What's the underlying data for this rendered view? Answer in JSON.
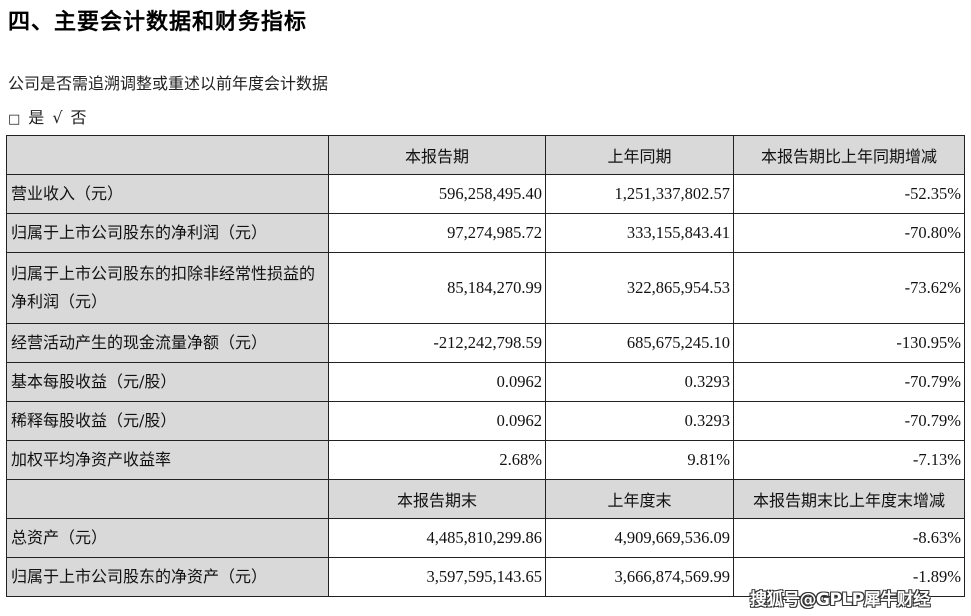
{
  "document": {
    "section_title": "四、主要会计数据和财务指标",
    "question": "公司是否需追溯调整或重述以前年度会计数据",
    "answer": {
      "yes_marker": "□",
      "yes_label": "是",
      "no_marker": "√",
      "no_label": "否"
    }
  },
  "table": {
    "header_period": [
      "",
      "本报告期",
      "上年同期",
      "本报告期比上年同期增减"
    ],
    "period_rows": [
      {
        "label": "营业收入（元）",
        "current": "596,258,495.40",
        "prior": "1,251,337,802.57",
        "change": "-52.35%"
      },
      {
        "label": "归属于上市公司股东的净利润（元）",
        "current": "97,274,985.72",
        "prior": "333,155,843.41",
        "change": "-70.80%"
      },
      {
        "label": "归属于上市公司股东的扣除非经常性损益的净利润（元）",
        "current": "85,184,270.99",
        "prior": "322,865,954.53",
        "change": "-73.62%"
      },
      {
        "label": "经营活动产生的现金流量净额（元）",
        "current": "-212,242,798.59",
        "prior": "685,675,245.10",
        "change": "-130.95%"
      },
      {
        "label": "基本每股收益（元/股）",
        "current": "0.0962",
        "prior": "0.3293",
        "change": "-70.79%"
      },
      {
        "label": "稀释每股收益（元/股）",
        "current": "0.0962",
        "prior": "0.3293",
        "change": "-70.79%"
      },
      {
        "label": "加权平均净资产收益率",
        "current": "2.68%",
        "prior": "9.81%",
        "change": "-7.13%"
      }
    ],
    "header_end": [
      "",
      "本报告期末",
      "上年度末",
      "本报告期末比上年度末增减"
    ],
    "end_rows": [
      {
        "label": "总资产（元）",
        "current": "4,485,810,299.86",
        "prior": "4,909,669,536.09",
        "change": "-8.63%"
      },
      {
        "label": "归属于上市公司股东的净资产（元）",
        "current": "3,597,595,143.65",
        "prior": "3,666,874,569.99",
        "change": "-1.89%"
      }
    ]
  },
  "watermark": "搜狐号@GPLP犀牛财经"
}
